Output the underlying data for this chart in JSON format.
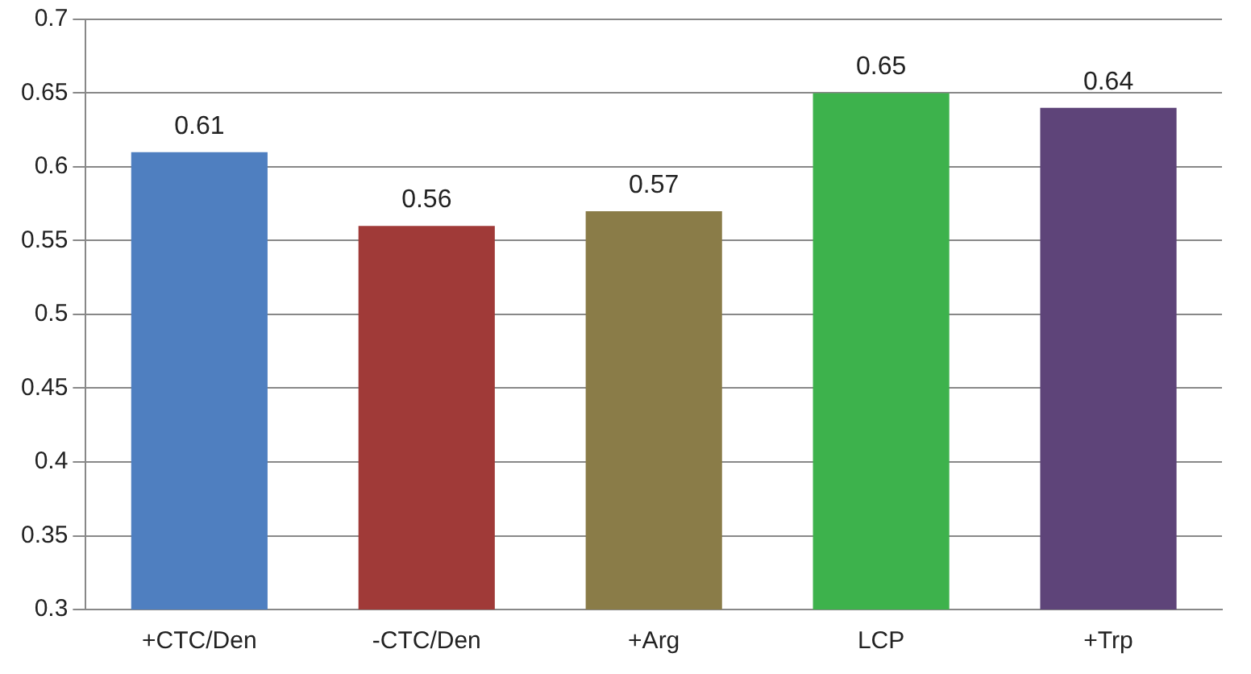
{
  "chart_data": {
    "type": "bar",
    "categories": [
      "+CTC/Den",
      "-CTC/Den",
      "+Arg",
      "LCP",
      "+Trp"
    ],
    "values": [
      0.61,
      0.56,
      0.57,
      0.65,
      0.64
    ],
    "colors": [
      "#4f7fc0",
      "#a03a38",
      "#8a7c48",
      "#3db24c",
      "#5e4479"
    ],
    "ylim": [
      0.3,
      0.7
    ],
    "yticks": [
      0.3,
      {
        "value": 0.35,
        "label": "0.35"
      },
      0.4,
      {
        "value": 0.45,
        "label": "0.45"
      },
      0.5,
      {
        "value": 0.55,
        "label": "0.55"
      },
      0.6,
      {
        "value": 0.65,
        "label": "0.65"
      },
      0.7
    ],
    "grid": "y",
    "data_labels": true
  }
}
